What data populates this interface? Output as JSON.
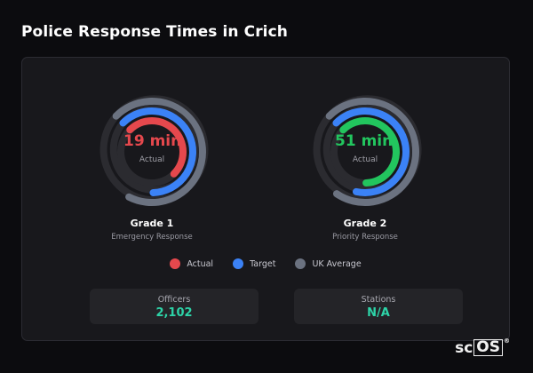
{
  "page": {
    "title": "Police Response Times in Crich"
  },
  "colors": {
    "actual_grade1": "#e5484d",
    "actual_grade2": "#22c55e",
    "target": "#3b82f6",
    "uk_average": "#6b7280",
    "track": "#2b2b30",
    "stat_value": "#2dd4a8"
  },
  "gauges": [
    {
      "value": "19 min",
      "sublabel": "Actual",
      "name": "Grade 1",
      "description": "Emergency Response",
      "actual_color": "#e5484d",
      "actual_fraction": 0.5,
      "target_fraction": 0.62,
      "uk_fraction": 0.7
    },
    {
      "value": "51 min",
      "sublabel": "Actual",
      "name": "Grade 2",
      "description": "Priority Response",
      "actual_color": "#22c55e",
      "actual_fraction": 0.62,
      "target_fraction": 0.66,
      "uk_fraction": 0.72
    }
  ],
  "legend": [
    {
      "label": "Actual",
      "icon": "red-dot",
      "color": "#e5484d"
    },
    {
      "label": "Target",
      "icon": "blue-dot",
      "color": "#3b82f6"
    },
    {
      "label": "UK Average",
      "icon": "gray-dot",
      "color": "#6b7280"
    }
  ],
  "stats": [
    {
      "label": "Officers",
      "value": "2,102"
    },
    {
      "label": "Stations",
      "value": "N/A"
    }
  ],
  "branding": {
    "prefix": "sc",
    "boxed": "OS",
    "mark": "®"
  }
}
